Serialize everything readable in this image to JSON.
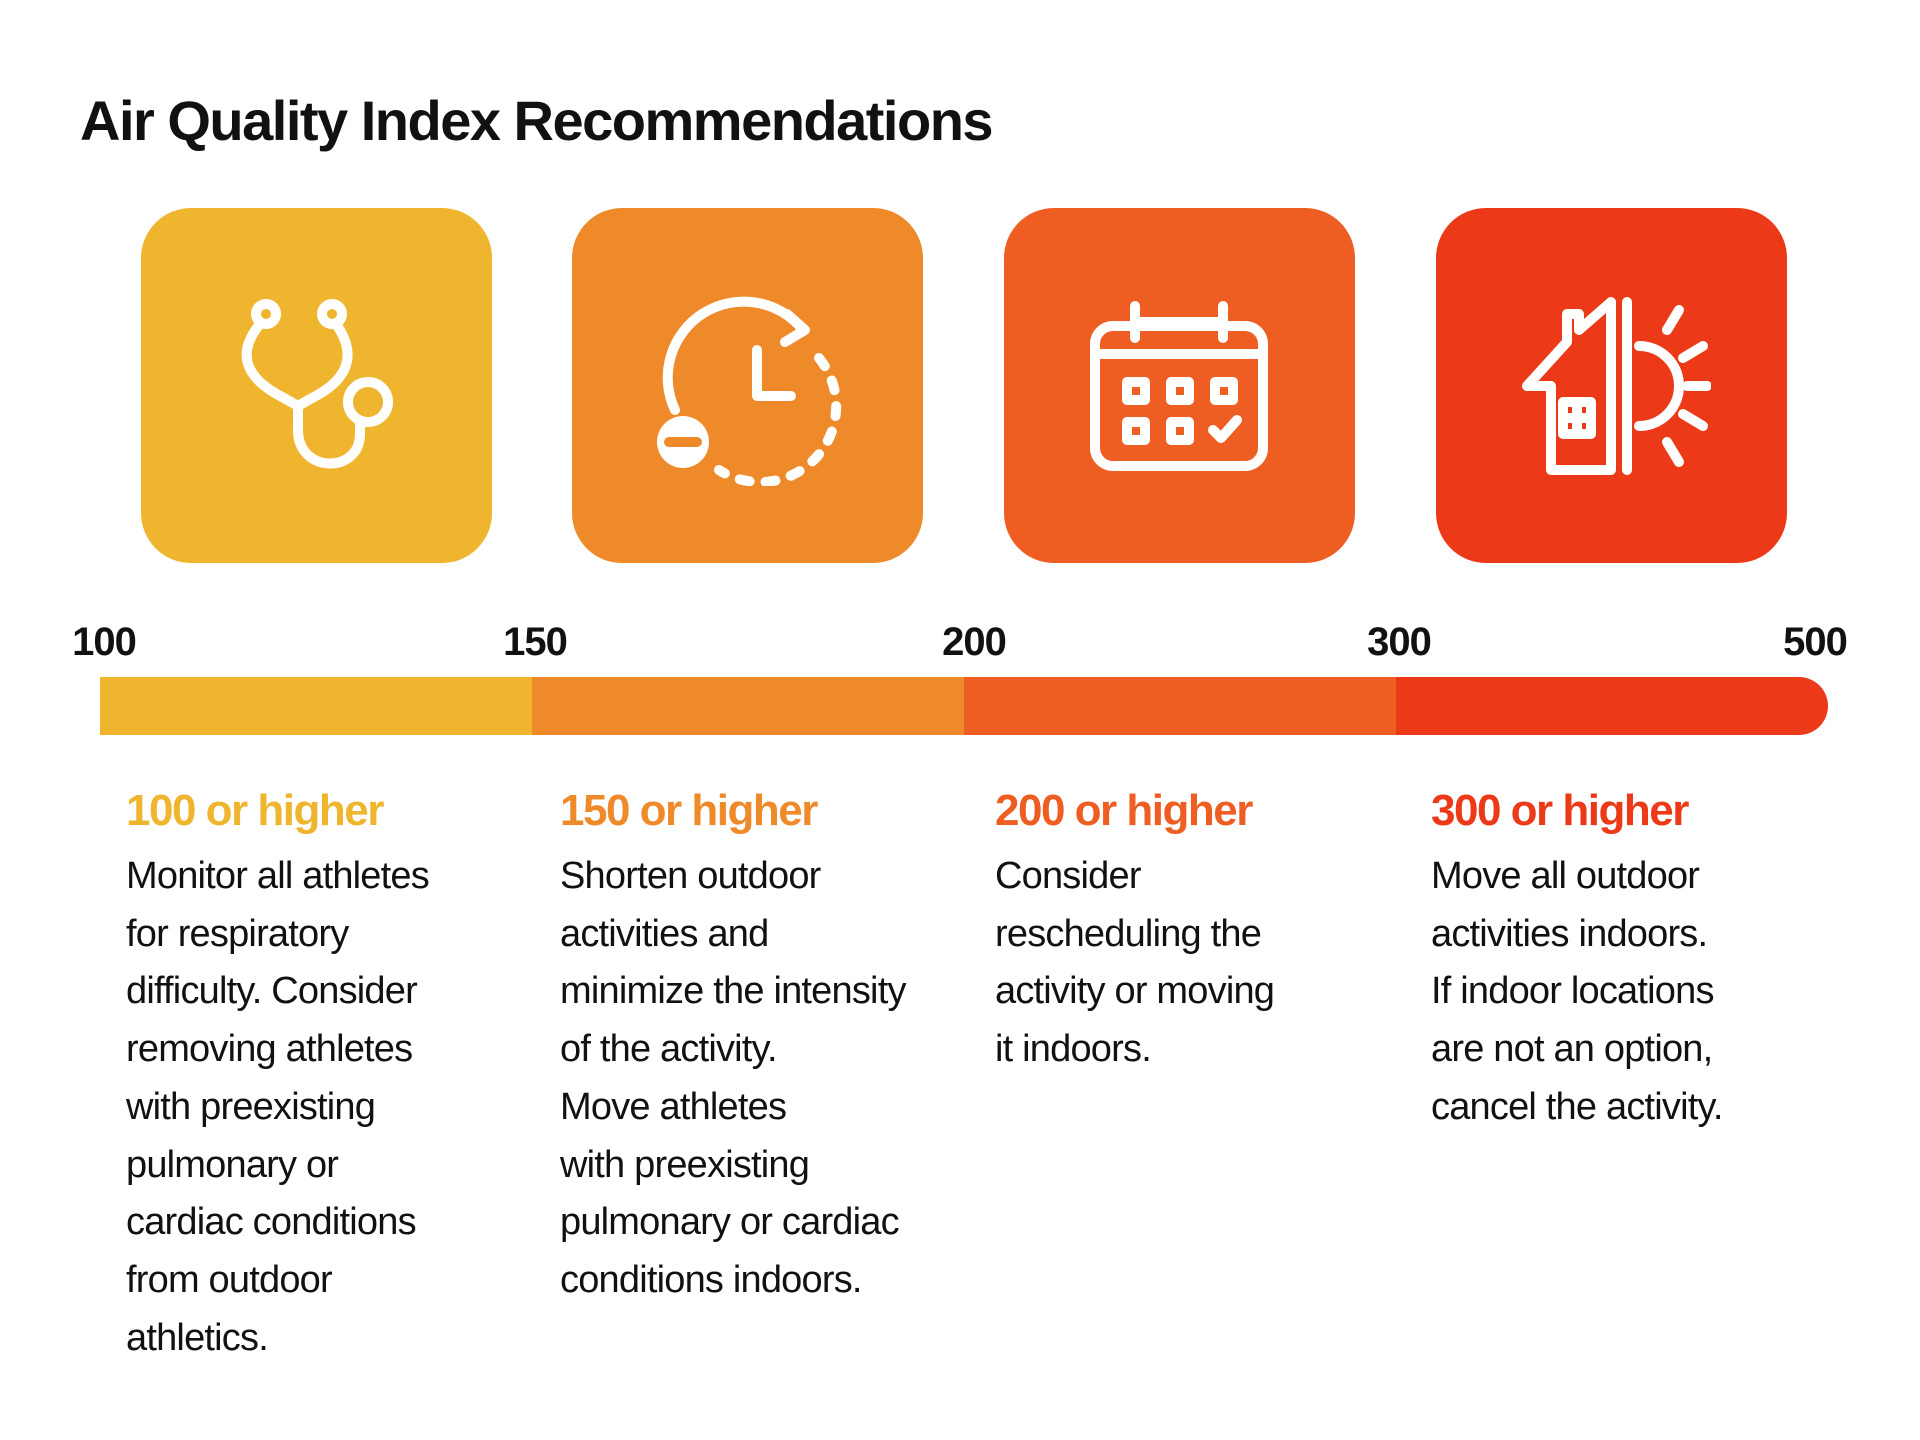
{
  "title": "Air Quality Index Recommendations",
  "scale_labels": [
    "100",
    "150",
    "200",
    "300",
    "500"
  ],
  "levels": [
    {
      "color": "#f0b52e",
      "heading": "100 or higher",
      "body": [
        "Monitor all athletes",
        "for respiratory",
        "difficulty. Consider",
        "removing athletes",
        "with preexisting",
        "pulmonary or",
        "cardiac conditions",
        "from outdoor",
        "athletics."
      ]
    },
    {
      "color": "#ef8a2a",
      "heading": "150 or higher",
      "body": [
        "Shorten outdoor",
        "activities and",
        "minimize the intensity",
        "of the activity.",
        "Move athletes",
        "with preexisting",
        "pulmonary or cardiac",
        "conditions indoors."
      ]
    },
    {
      "color": "#ee5e22",
      "heading": "200 or higher",
      "body": [
        "Consider",
        "rescheduling the",
        "activity or moving",
        "it indoors."
      ]
    },
    {
      "color": "#ec3a19",
      "heading": "300 or higher",
      "body": [
        "Move all outdoor",
        "activities indoors.",
        "If indoor locations",
        "are not an option,",
        "cancel the activity."
      ]
    }
  ]
}
